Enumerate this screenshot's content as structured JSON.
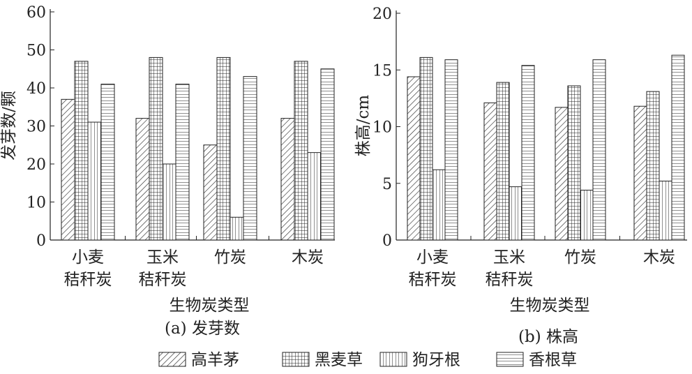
{
  "chart_data": [
    {
      "type": "bar",
      "title": "(a) 发芽数",
      "xlabel": "生物炭类型",
      "ylabel": "发芽数/颗",
      "ylim": [
        0,
        60
      ],
      "yticks": [
        0,
        10,
        20,
        30,
        40,
        50,
        60
      ],
      "categories": [
        [
          "小麦",
          "秸秆炭"
        ],
        [
          "玉米",
          "秸秆炭"
        ],
        [
          "竹炭"
        ],
        [
          "木炭"
        ]
      ],
      "series": [
        {
          "name": "高羊茅",
          "values": [
            37,
            32,
            25,
            32
          ]
        },
        {
          "name": "黑麦草",
          "values": [
            47,
            48,
            48,
            47
          ]
        },
        {
          "name": "狗牙根",
          "values": [
            31,
            20,
            6,
            23
          ]
        },
        {
          "name": "香根草",
          "values": [
            41,
            41,
            43,
            45
          ]
        }
      ]
    },
    {
      "type": "bar",
      "title": "(b) 株高",
      "xlabel": "生物炭类型",
      "ylabel": "株高/cm",
      "ylim": [
        0,
        20
      ],
      "yticks": [
        0,
        5,
        10,
        15,
        20
      ],
      "categories": [
        [
          "小麦",
          "秸秆炭"
        ],
        [
          "玉米",
          "秸秆炭"
        ],
        [
          "竹炭"
        ],
        [
          "木炭"
        ]
      ],
      "series": [
        {
          "name": "高羊茅",
          "values": [
            14.4,
            12.1,
            11.7,
            11.8
          ]
        },
        {
          "name": "黑麦草",
          "values": [
            16.1,
            13.9,
            13.6,
            13.1
          ]
        },
        {
          "name": "狗牙根",
          "values": [
            6.2,
            4.7,
            4.4,
            5.2
          ]
        },
        {
          "name": "香根草",
          "values": [
            15.9,
            15.4,
            15.9,
            16.3
          ]
        }
      ]
    }
  ],
  "legend": [
    "高羊茅",
    "黑麦草",
    "狗牙根",
    "香根草"
  ]
}
